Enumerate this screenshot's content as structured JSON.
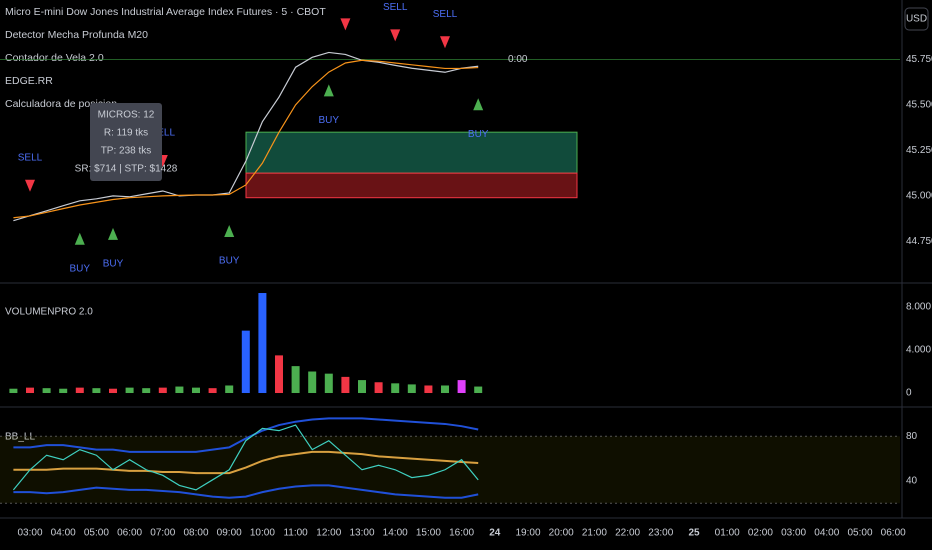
{
  "header": {
    "title": "Micro E-mini Dow Jones Industrial Average Index Futures · 5 · CBOT",
    "indicators": [
      "Detector Mecha Profunda M20",
      "Contador de Vela 2.0",
      "EDGE.RR",
      "Calculadora de posicion"
    ]
  },
  "currency_button": "USD",
  "tooltip": [
    "MICROS: 12",
    "R: 119 tks",
    "TP: 238 tks",
    "SR: $714 | STP: $1428"
  ],
  "time_axis": [
    "03:00",
    "04:00",
    "05:00",
    "06:00",
    "07:00",
    "08:00",
    "09:00",
    "10:00",
    "11:00",
    "12:00",
    "13:00",
    "14:00",
    "15:00",
    "16:00",
    "24",
    "19:00",
    "20:00",
    "21:00",
    "22:00",
    "23:00",
    "25",
    "01:00",
    "02:00",
    "03:00",
    "04:00",
    "05:00",
    "06:00"
  ],
  "chart_data": [
    {
      "type": "line",
      "x": [
        "02:30",
        "03:00",
        "03:30",
        "04:00",
        "04:30",
        "05:00",
        "05:30",
        "06:00",
        "06:30",
        "07:00",
        "07:30",
        "08:00",
        "08:30",
        "09:00",
        "09:30",
        "10:00",
        "10:30",
        "11:00",
        "11:30",
        "12:00",
        "12:30",
        "13:00",
        "13:30",
        "14:00",
        "14:30",
        "15:00",
        "15:30",
        "16:00",
        "16:30"
      ],
      "series": [
        {
          "color": "#c8ccd4",
          "values": [
            44864,
            44891,
            44918,
            44946,
            44973,
            44984,
            45000,
            44995,
            45011,
            45027,
            45000,
            45005,
            45005,
            45016,
            45190,
            45408,
            45543,
            45707,
            45761,
            45788,
            45777,
            45745,
            45734,
            45717,
            45701,
            45690,
            45679,
            45701,
            45712
          ]
        },
        {
          "color": "#f7931a",
          "values": [
            44880,
            44890,
            44910,
            44930,
            44950,
            44965,
            44980,
            44990,
            44995,
            45000,
            45003,
            45005,
            45005,
            45008,
            45060,
            45180,
            45350,
            45500,
            45600,
            45680,
            45730,
            45745,
            45740,
            45730,
            45720,
            45710,
            45700,
            45700,
            45705
          ]
        }
      ],
      "ylim": [
        44527,
        46076
      ],
      "yticks": [
        {
          "value": 44750,
          "label": "44.750"
        },
        {
          "value": 45000,
          "label": "45.000"
        },
        {
          "value": 45250,
          "label": "45.250"
        },
        {
          "value": 45500,
          "label": "45.500"
        },
        {
          "value": 45750,
          "label": "45.750"
        }
      ],
      "price_line": 45750,
      "price_line_label": "0:00",
      "tp_zone": [
        45125,
        45350
      ],
      "sl_zone": [
        44990,
        45125
      ],
      "signals": [
        {
          "text": "SELL",
          "x": "03:00",
          "color": "#f23645"
        },
        {
          "text": "BUY",
          "x": "04:30",
          "color": "#4caf50"
        },
        {
          "text": "BUY",
          "x": "05:30",
          "color": "#4caf50"
        },
        {
          "text": "SELL",
          "x": "07:00",
          "color": "#f23645"
        },
        {
          "text": "BUY",
          "x": "09:00",
          "color": "#4caf50"
        },
        {
          "text": "BUY",
          "x": "12:00",
          "color": "#4caf50"
        },
        {
          "text": "SELL",
          "x": "12:30",
          "color": "#f23645"
        },
        {
          "text": "SELL",
          "x": "14:00",
          "color": "#f23645"
        },
        {
          "text": "SELL",
          "x": "15:30",
          "color": "#f23645"
        },
        {
          "text": "BUY",
          "x": "16:30",
          "color": "#4caf50"
        }
      ]
    },
    {
      "type": "bar",
      "title": "VOLUMENPRO 2.0",
      "x": [
        "02:30",
        "03:00",
        "03:30",
        "04:00",
        "04:30",
        "05:00",
        "05:30",
        "06:00",
        "06:30",
        "07:00",
        "07:30",
        "08:00",
        "08:30",
        "09:00",
        "09:30",
        "10:00",
        "10:30",
        "11:00",
        "11:30",
        "12:00",
        "12:30",
        "13:00",
        "13:30",
        "14:00",
        "14:30",
        "15:00",
        "15:30",
        "16:00",
        "16:30"
      ],
      "series": [
        {
          "values": [
            400,
            500,
            450,
            400,
            500,
            450,
            400,
            500,
            450,
            500,
            600,
            500,
            450,
            700,
            5800,
            9300,
            3500,
            2500,
            2000,
            1800,
            1500,
            1200,
            1000,
            900,
            800,
            700,
            700,
            1200,
            600
          ],
          "colors": [
            "#4caf50",
            "#f23645",
            "#4caf50",
            "#4caf50",
            "#f23645",
            "#4caf50",
            "#f23645",
            "#4caf50",
            "#4caf50",
            "#f23645",
            "#4caf50",
            "#4caf50",
            "#f23645",
            "#4caf50",
            "#2962ff",
            "#2962ff",
            "#f23645",
            "#4caf50",
            "#4caf50",
            "#4caf50",
            "#f23645",
            "#4caf50",
            "#f23645",
            "#4caf50",
            "#4caf50",
            "#f23645",
            "#4caf50",
            "#e040fb",
            "#4caf50"
          ]
        }
      ],
      "ylim": [
        -650,
        9580
      ],
      "yticks": [
        0,
        {
          "value": 4000,
          "label": "4.000"
        },
        {
          "value": 8000,
          "label": "8.000"
        }
      ]
    },
    {
      "type": "line",
      "title": "BB_LL",
      "x": [
        "02:30",
        "03:00",
        "03:30",
        "04:00",
        "04:30",
        "05:00",
        "05:30",
        "06:00",
        "06:30",
        "07:00",
        "07:30",
        "08:00",
        "08:30",
        "09:00",
        "09:30",
        "10:00",
        "10:30",
        "11:00",
        "11:30",
        "12:00",
        "12:30",
        "13:00",
        "13:30",
        "14:00",
        "14:30",
        "15:00",
        "15:30",
        "16:00",
        "16:30"
      ],
      "series": [
        {
          "color": "#2050d8",
          "values": [
            70,
            70,
            72,
            72,
            70,
            68,
            68,
            66,
            66,
            66,
            66,
            66,
            68,
            70,
            78,
            85,
            90,
            93,
            95,
            96,
            96,
            96,
            95,
            94,
            93,
            92,
            91,
            89,
            86
          ]
        },
        {
          "color": "#2050d8",
          "values": [
            30,
            30,
            29,
            30,
            32,
            34,
            33,
            32,
            32,
            31,
            30,
            28,
            26,
            25,
            26,
            30,
            33,
            35,
            36,
            36,
            34,
            32,
            30,
            28,
            27,
            26,
            25,
            25,
            28
          ]
        },
        {
          "color": "#d8a040",
          "values": [
            50,
            50,
            50,
            51,
            51,
            51,
            50,
            49,
            49,
            48,
            48,
            47,
            47,
            47,
            52,
            58,
            62,
            64,
            66,
            66,
            65,
            64,
            62,
            61,
            60,
            59,
            58,
            57,
            56
          ]
        },
        {
          "color": "#3fd0c0",
          "values": [
            32,
            50,
            63,
            59,
            68,
            63,
            50,
            59,
            50,
            45,
            36,
            32,
            41,
            50,
            76,
            87,
            85,
            90,
            68,
            76,
            63,
            50,
            54,
            50,
            43,
            45,
            50,
            59,
            41
          ]
        }
      ],
      "ylim": [
        14,
        99
      ],
      "yticks": [
        40,
        80
      ],
      "band": [
        20,
        80
      ]
    }
  ]
}
